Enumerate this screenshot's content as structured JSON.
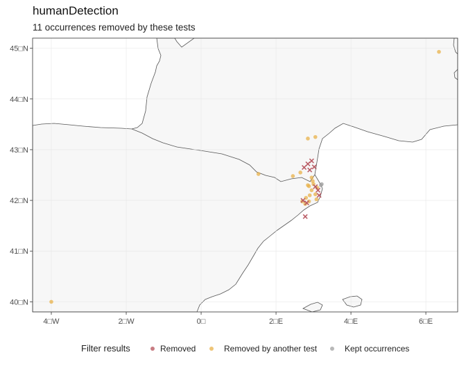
{
  "title": "humanDetection",
  "subtitle": "11 occurrences removed by these tests",
  "map": {
    "lon_range": [
      -4.5,
      6.85
    ],
    "lat_range": [
      39.8,
      45.2
    ],
    "x_ticks": [
      {
        "lon": -4,
        "label": "4□W"
      },
      {
        "lon": -2,
        "label": "2□W"
      },
      {
        "lon": 0,
        "label": "0□"
      },
      {
        "lon": 2,
        "label": "2□E"
      },
      {
        "lon": 4,
        "label": "4□E"
      },
      {
        "lon": 6,
        "label": "6□E"
      }
    ],
    "y_ticks": [
      {
        "lat": 45,
        "label": "45□N"
      },
      {
        "lat": 44,
        "label": "44□N"
      },
      {
        "lat": 43,
        "label": "43□N"
      },
      {
        "lat": 42,
        "label": "42□N"
      },
      {
        "lat": 41,
        "label": "41□N"
      },
      {
        "lat": 40,
        "label": "40□N"
      }
    ],
    "colors": {
      "removed": "#b5505a",
      "another": "#e8b24a",
      "kept": "#a0a0a0",
      "land": "#f7f7f7",
      "coast": "#555555",
      "grid": "#e6e6e6"
    }
  },
  "chart_data": {
    "type": "scatter",
    "series": [
      {
        "name": "Removed",
        "marker": "x",
        "points": [
          [
            2.85,
            42.72
          ],
          [
            2.95,
            42.78
          ],
          [
            2.75,
            42.65
          ],
          [
            3.02,
            42.66
          ],
          [
            2.9,
            42.6
          ],
          [
            3.05,
            42.27
          ],
          [
            3.12,
            42.2
          ],
          [
            2.72,
            42.0
          ],
          [
            2.82,
            41.95
          ],
          [
            3.15,
            42.1
          ],
          [
            2.78,
            41.68
          ]
        ]
      },
      {
        "name": "Removed by another test",
        "marker": "circle",
        "points": [
          [
            -4.0,
            40.0
          ],
          [
            6.35,
            44.93
          ],
          [
            1.53,
            42.52
          ],
          [
            2.85,
            43.22
          ],
          [
            3.05,
            43.25
          ],
          [
            2.45,
            42.48
          ],
          [
            2.65,
            42.55
          ],
          [
            2.95,
            42.45
          ],
          [
            2.85,
            42.3
          ],
          [
            3.0,
            42.32
          ],
          [
            3.1,
            42.25
          ],
          [
            2.95,
            42.2
          ],
          [
            3.05,
            42.12
          ],
          [
            2.9,
            42.1
          ],
          [
            2.8,
            42.05
          ],
          [
            2.7,
            41.98
          ],
          [
            2.78,
            41.93
          ],
          [
            2.88,
            41.98
          ],
          [
            3.08,
            42.02
          ],
          [
            2.98,
            42.38
          ],
          [
            2.88,
            42.28
          ]
        ]
      },
      {
        "name": "Kept occurrences",
        "marker": "circle",
        "points": [
          [
            3.22,
            42.32
          ],
          [
            3.2,
            42.3
          ]
        ]
      }
    ]
  },
  "legend": {
    "title": "Filter results",
    "items": [
      "Removed",
      "Removed by another test",
      "Kept occurrences"
    ]
  }
}
